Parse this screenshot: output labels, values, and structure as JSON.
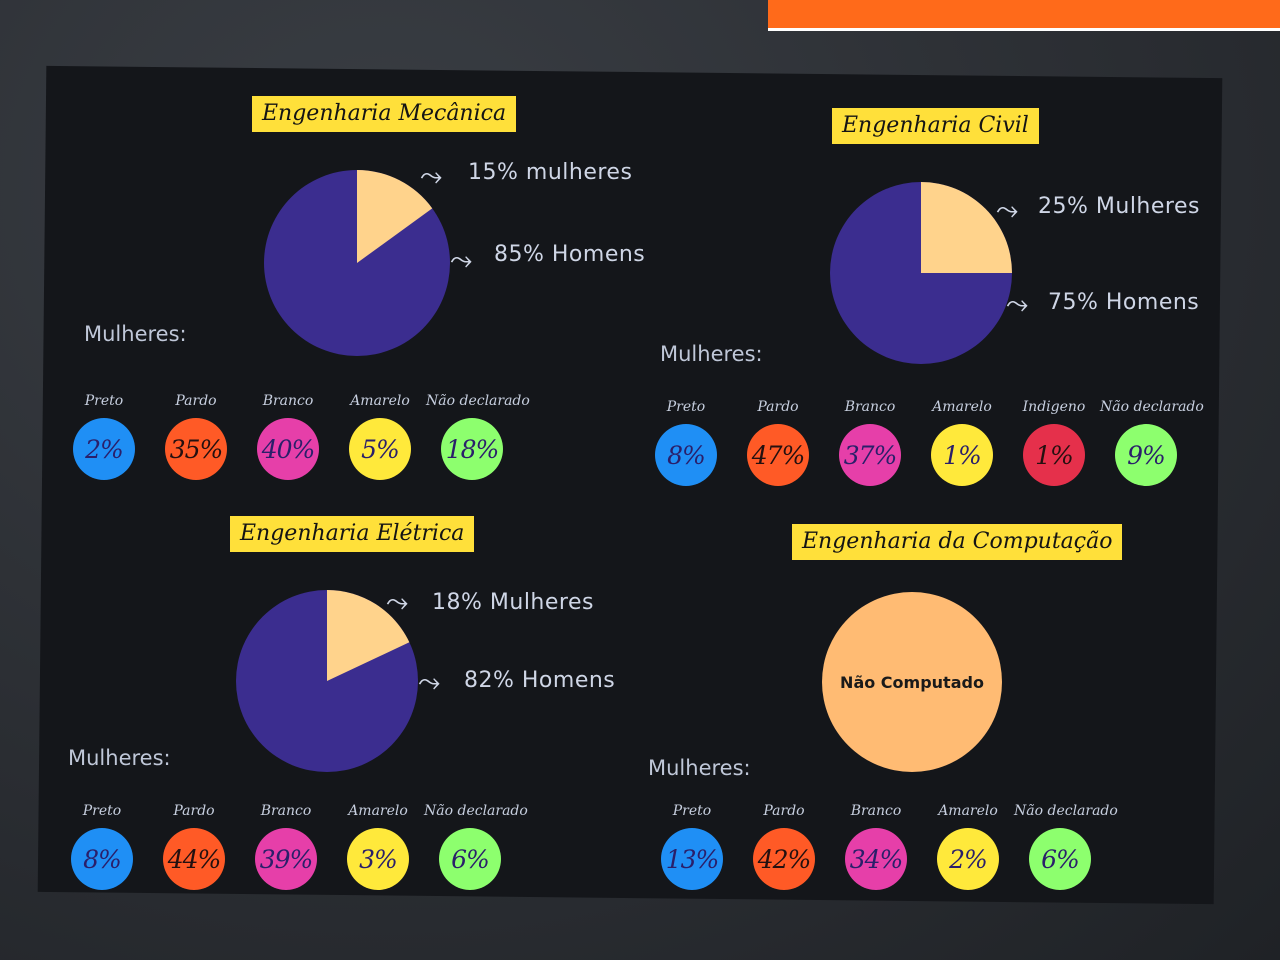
{
  "colors": {
    "homens": "#3b2d8f",
    "mulheres": "#ffd38c",
    "title_bg": "#ffe03a",
    "preto": "#1f8ff5",
    "pardo": "#ff5a26",
    "branco": "#e63fa9",
    "amarelo": "#ffe93b",
    "indigeno": "#e5304b",
    "nao_declarado": "#8dff6e"
  },
  "panels": [
    {
      "title": "Engenharia Mecânica",
      "pie": {
        "mulheres_pct": 15,
        "homens_pct": 85
      },
      "annot_mulheres": "15% mulheres",
      "annot_homens": "85% Homens",
      "mulheres_label": "Mulheres:",
      "stats": [
        {
          "label": "Preto",
          "value": "2%",
          "color_key": "preto"
        },
        {
          "label": "Pardo",
          "value": "35%",
          "color_key": "pardo"
        },
        {
          "label": "Branco",
          "value": "40%",
          "color_key": "branco"
        },
        {
          "label": "Amarelo",
          "value": "5%",
          "color_key": "amarelo"
        },
        {
          "label": "Não declarado",
          "value": "18%",
          "color_key": "nao_declarado"
        }
      ]
    },
    {
      "title": "Engenharia Civil",
      "pie": {
        "mulheres_pct": 25,
        "homens_pct": 75
      },
      "annot_mulheres": "25% Mulheres",
      "annot_homens": "75% Homens",
      "mulheres_label": "Mulheres:",
      "stats": [
        {
          "label": "Preto",
          "value": "8%",
          "color_key": "preto"
        },
        {
          "label": "Pardo",
          "value": "47%",
          "color_key": "pardo"
        },
        {
          "label": "Branco",
          "value": "37%",
          "color_key": "branco"
        },
        {
          "label": "Amarelo",
          "value": "1%",
          "color_key": "amarelo"
        },
        {
          "label": "Indigeno",
          "value": "1%",
          "color_key": "indigeno"
        },
        {
          "label": "Não declarado",
          "value": "9%",
          "color_key": "nao_declarado"
        }
      ]
    },
    {
      "title": "Engenharia Elétrica",
      "pie": {
        "mulheres_pct": 18,
        "homens_pct": 82
      },
      "annot_mulheres": "18% Mulheres",
      "annot_homens": "82% Homens",
      "mulheres_label": "Mulheres:",
      "stats": [
        {
          "label": "Preto",
          "value": "8%",
          "color_key": "preto"
        },
        {
          "label": "Pardo",
          "value": "44%",
          "color_key": "pardo"
        },
        {
          "label": "Branco",
          "value": "39%",
          "color_key": "branco"
        },
        {
          "label": "Amarelo",
          "value": "3%",
          "color_key": "amarelo"
        },
        {
          "label": "Não declarado",
          "value": "6%",
          "color_key": "nao_declarado"
        }
      ]
    },
    {
      "title": "Engenharia da Computação",
      "pie_text": "Não Computado",
      "mulheres_label": "Mulheres:",
      "stats": [
        {
          "label": "Preto",
          "value": "13%",
          "color_key": "preto"
        },
        {
          "label": "Pardo",
          "value": "42%",
          "color_key": "pardo"
        },
        {
          "label": "Branco",
          "value": "34%",
          "color_key": "branco"
        },
        {
          "label": "Amarelo",
          "value": "2%",
          "color_key": "amarelo"
        },
        {
          "label": "Não declarado",
          "value": "6%",
          "color_key": "nao_declarado"
        }
      ]
    }
  ]
}
